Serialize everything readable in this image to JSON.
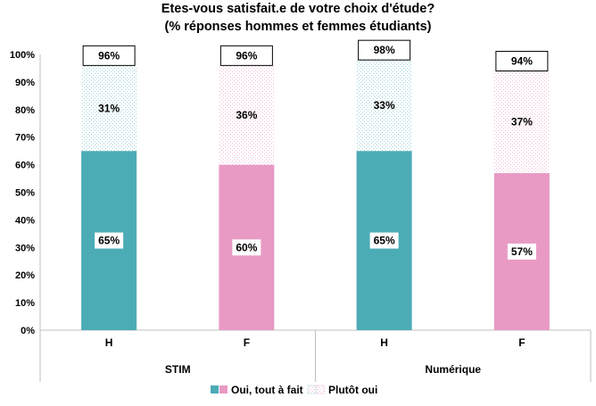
{
  "chart_data": {
    "type": "bar",
    "stacked": true,
    "title_lines": [
      "Etes-vous satisfait.e de votre choix d'étude?",
      "(% réponses hommes et femmes étudiants)"
    ],
    "groups": [
      {
        "name": "STIM",
        "categories": [
          "H",
          "F"
        ]
      },
      {
        "name": "Numérique",
        "categories": [
          "H",
          "F"
        ]
      }
    ],
    "bars": [
      {
        "group": "STIM",
        "category": "H",
        "oui": 65,
        "plutot": 31,
        "total": 96,
        "oui_label": "65%",
        "plutot_label": "31%",
        "total_label": "96%",
        "color": "#4bacb6",
        "pattern_color": "#9dd3dc"
      },
      {
        "group": "STIM",
        "category": "F",
        "oui": 60,
        "plutot": 36,
        "total": 96,
        "oui_label": "60%",
        "plutot_label": "36%",
        "total_label": "96%",
        "color": "#e89ac4",
        "pattern_color": "#f2bcd9"
      },
      {
        "group": "Numérique",
        "category": "H",
        "oui": 65,
        "plutot": 33,
        "total": 98,
        "oui_label": "65%",
        "plutot_label": "33%",
        "total_label": "98%",
        "color": "#4bacb6",
        "pattern_color": "#9dd3dc"
      },
      {
        "group": "Numérique",
        "category": "F",
        "oui": 57,
        "plutot": 37,
        "total": 94,
        "oui_label": "57%",
        "plutot_label": "37%",
        "total_label": "94%",
        "color": "#e89ac4",
        "pattern_color": "#f2bcd9"
      }
    ],
    "yticks": [
      "0%",
      "10%",
      "20%",
      "30%",
      "40%",
      "50%",
      "60%",
      "70%",
      "80%",
      "90%",
      "100%"
    ],
    "ylim": [
      0,
      100
    ],
    "legend": [
      {
        "label": "Oui, tout à fait",
        "style": "solid"
      },
      {
        "label": "Plutôt oui",
        "style": "pattern"
      }
    ],
    "legend_position": "bottom",
    "grid": false
  }
}
